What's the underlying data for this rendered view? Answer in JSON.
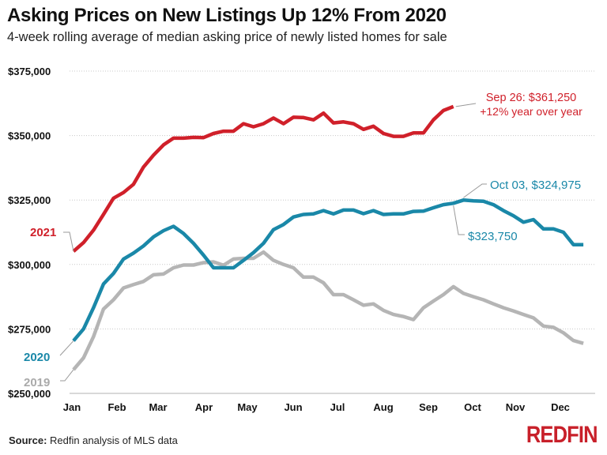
{
  "chart_data": {
    "type": "line",
    "title": "Asking Prices on New Listings Up 12% From 2020",
    "subtitle": "4-week rolling average of median asking price of newly listed homes for sale",
    "xlabel": "",
    "ylabel": "",
    "x_ticks": [
      "Jan",
      "Feb",
      "Mar",
      "Apr",
      "May",
      "Jun",
      "Jul",
      "Aug",
      "Sep",
      "Oct",
      "Nov",
      "Dec"
    ],
    "y_ticks": [
      "$250,000",
      "$275,000",
      "$300,000",
      "$325,000",
      "$350,000",
      "$375,000"
    ],
    "ylim": [
      250000,
      375000
    ],
    "grid": "horizontal dotted",
    "series": [
      {
        "name": "2021",
        "color": "#d0202a",
        "values": [
          305100,
          308500,
          313300,
          319400,
          325700,
          327900,
          331100,
          337800,
          342400,
          346400,
          349000,
          349000,
          349300,
          349200,
          350800,
          351700,
          351700,
          354600,
          353400,
          354600,
          356800,
          354600,
          357100,
          357000,
          356100,
          358700,
          354900,
          355300,
          354600,
          352400,
          353600,
          350800,
          349700,
          349700,
          351000,
          351000,
          356100,
          359700,
          361250
        ]
      },
      {
        "name": "2020",
        "color": "#1a88a8",
        "values": [
          270400,
          275000,
          283200,
          292400,
          296500,
          302100,
          304400,
          307200,
          310700,
          313100,
          314800,
          312000,
          308200,
          303600,
          298700,
          298700,
          298700,
          301600,
          304600,
          308200,
          313500,
          315500,
          318400,
          319400,
          319600,
          320900,
          319600,
          321100,
          321100,
          319700,
          320900,
          319400,
          319600,
          319600,
          320600,
          320700,
          322000,
          323200,
          323750,
          324975,
          324700,
          324500,
          323200,
          320900,
          318900,
          316400,
          317400,
          313800,
          313800,
          312500,
          307700,
          307700
        ]
      },
      {
        "name": "2019",
        "color": "#b5b5b5",
        "values": [
          259200,
          263800,
          272000,
          282700,
          286300,
          290900,
          292200,
          293400,
          296000,
          296300,
          298700,
          299800,
          299800,
          300700,
          301000,
          299700,
          302100,
          302400,
          302400,
          304800,
          301600,
          300000,
          298700,
          295100,
          295100,
          292900,
          288300,
          288300,
          286300,
          284200,
          284700,
          282200,
          280600,
          279800,
          278600,
          283200,
          285800,
          288300,
          291400,
          288800,
          287500,
          286300,
          284700,
          283200,
          282000,
          280600,
          279300,
          276100,
          275600,
          273500,
          270500,
          269400
        ]
      }
    ],
    "annotations": {
      "red_line1": "Sep 26: $361,250",
      "red_line2": "+12% year over year",
      "blue_peak": "Oct 03, $324,975",
      "blue_prev": "$323,750"
    }
  },
  "footer": {
    "source_label": "Source:",
    "source_text": " Redfin analysis of MLS data",
    "logo": "REDFIN"
  }
}
